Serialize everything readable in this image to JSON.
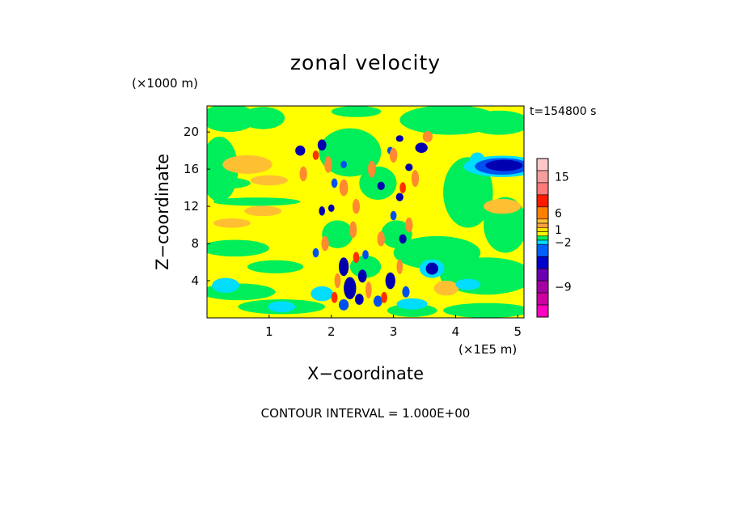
{
  "chart_data": {
    "type": "heatmap",
    "title": "zonal velocity",
    "xlabel": "X−coordinate",
    "ylabel": "Z−coordinate",
    "x_unit": "(×1E5 m)",
    "y_unit": "(×1000 m)",
    "time_label": "t=154800 s",
    "footer": "CONTOUR INTERVAL = 1.000E+00",
    "xlim": [
      0,
      5.1
    ],
    "ylim": [
      0,
      22.8
    ],
    "x_ticks": [
      1,
      2,
      3,
      4,
      5
    ],
    "y_ticks": [
      4,
      8,
      12,
      16,
      20
    ],
    "grid": false,
    "colorbar": {
      "position": "right",
      "tick_labels": [
        {
          "label": "15",
          "value": 15
        },
        {
          "label": "6",
          "value": 6
        },
        {
          "label": "1",
          "value": 1
        },
        {
          "label": "−2",
          "value": -2
        },
        {
          "label": "−9",
          "value": -9
        }
      ],
      "levels": [
        {
          "value": 18,
          "color": "#ffc8c8"
        },
        {
          "value": 15,
          "color": "#f59e9e"
        },
        {
          "value": 12,
          "color": "#ff7a7a"
        },
        {
          "value": 9,
          "color": "#ff1a00"
        },
        {
          "value": 6,
          "color": "#ff7f00"
        },
        {
          "value": 3,
          "color": "#ffbf33"
        },
        {
          "value": 2,
          "color": "#ffa040"
        },
        {
          "value": 1,
          "color": "#ffe000"
        },
        {
          "value": 0,
          "color": "#ffff00"
        },
        {
          "value": -1,
          "color": "#00ee5a"
        },
        {
          "value": -2,
          "color": "#00ddff"
        },
        {
          "value": -3,
          "color": "#0060ff"
        },
        {
          "value": -5,
          "color": "#0000cc"
        },
        {
          "value": -7,
          "color": "#6a00b0"
        },
        {
          "value": -9,
          "color": "#a400a4"
        },
        {
          "value": -11,
          "color": "#cc00a0"
        },
        {
          "value": -13,
          "color": "#ff00c0"
        }
      ]
    },
    "palette": {
      "yellow": "#ffff00",
      "green": "#00ee5a",
      "cyan": "#00ddff",
      "blue": "#0050f0",
      "navy": "#0000b0",
      "orange": "#ffbf33",
      "dark_orange": "#ff8a30",
      "red": "#ff3000"
    },
    "blobs": [
      {
        "x": 0.35,
        "y": 21.5,
        "rx": 0.45,
        "ry": 1.5,
        "v": "green"
      },
      {
        "x": 0.9,
        "y": 21.5,
        "rx": 0.35,
        "ry": 1.2,
        "v": "green"
      },
      {
        "x": 2.4,
        "y": 22.2,
        "rx": 0.4,
        "ry": 0.6,
        "v": "green"
      },
      {
        "x": 3.9,
        "y": 21.3,
        "rx": 0.8,
        "ry": 1.6,
        "v": "green"
      },
      {
        "x": 4.7,
        "y": 21.0,
        "rx": 0.5,
        "ry": 1.3,
        "v": "green"
      },
      {
        "x": 0.2,
        "y": 16.0,
        "rx": 0.3,
        "ry": 3.5,
        "v": "green"
      },
      {
        "x": 0.8,
        "y": 12.5,
        "rx": 0.7,
        "ry": 0.45,
        "v": "green"
      },
      {
        "x": 0.3,
        "y": 14.5,
        "rx": 0.4,
        "ry": 0.6,
        "v": "green"
      },
      {
        "x": 4.2,
        "y": 13.5,
        "rx": 0.4,
        "ry": 3.8,
        "v": "green"
      },
      {
        "x": 4.8,
        "y": 10.0,
        "rx": 0.35,
        "ry": 3.0,
        "v": "green"
      },
      {
        "x": 0.45,
        "y": 7.5,
        "rx": 0.55,
        "ry": 0.9,
        "v": "green"
      },
      {
        "x": 1.1,
        "y": 5.5,
        "rx": 0.45,
        "ry": 0.7,
        "v": "green"
      },
      {
        "x": 0.5,
        "y": 2.8,
        "rx": 0.6,
        "ry": 0.9,
        "v": "green"
      },
      {
        "x": 1.2,
        "y": 1.2,
        "rx": 0.7,
        "ry": 0.8,
        "v": "green"
      },
      {
        "x": 3.7,
        "y": 7.0,
        "rx": 0.7,
        "ry": 1.8,
        "v": "green"
      },
      {
        "x": 4.5,
        "y": 4.5,
        "rx": 0.75,
        "ry": 2.0,
        "v": "green"
      },
      {
        "x": 4.5,
        "y": 0.8,
        "rx": 0.7,
        "ry": 0.8,
        "v": "green"
      },
      {
        "x": 3.3,
        "y": 0.8,
        "rx": 0.4,
        "ry": 0.7,
        "v": "green"
      },
      {
        "x": 0.65,
        "y": 16.5,
        "rx": 0.4,
        "ry": 1.0,
        "v": "orange"
      },
      {
        "x": 1.0,
        "y": 14.8,
        "rx": 0.3,
        "ry": 0.55,
        "v": "orange"
      },
      {
        "x": 0.9,
        "y": 11.5,
        "rx": 0.3,
        "ry": 0.55,
        "v": "orange"
      },
      {
        "x": 0.4,
        "y": 10.2,
        "rx": 0.3,
        "ry": 0.5,
        "v": "orange"
      },
      {
        "x": 4.75,
        "y": 12.0,
        "rx": 0.3,
        "ry": 0.8,
        "v": "orange"
      },
      {
        "x": 3.85,
        "y": 3.2,
        "rx": 0.2,
        "ry": 0.8,
        "v": "orange"
      },
      {
        "x": 2.3,
        "y": 17.8,
        "rx": 0.5,
        "ry": 2.6,
        "v": "green"
      },
      {
        "x": 2.75,
        "y": 14.5,
        "rx": 0.3,
        "ry": 1.8,
        "v": "green"
      },
      {
        "x": 2.1,
        "y": 9.0,
        "rx": 0.25,
        "ry": 1.5,
        "v": "green"
      },
      {
        "x": 3.05,
        "y": 9.0,
        "rx": 0.25,
        "ry": 1.5,
        "v": "green"
      },
      {
        "x": 2.55,
        "y": 5.5,
        "rx": 0.25,
        "ry": 1.2,
        "v": "green"
      },
      {
        "x": 0.3,
        "y": 3.5,
        "rx": 0.22,
        "ry": 0.8,
        "v": "cyan"
      },
      {
        "x": 1.2,
        "y": 1.2,
        "rx": 0.22,
        "ry": 0.6,
        "v": "cyan"
      },
      {
        "x": 1.85,
        "y": 2.6,
        "rx": 0.18,
        "ry": 0.8,
        "v": "cyan"
      },
      {
        "x": 3.3,
        "y": 1.5,
        "rx": 0.25,
        "ry": 0.6,
        "v": "cyan"
      },
      {
        "x": 4.2,
        "y": 3.6,
        "rx": 0.2,
        "ry": 0.6,
        "v": "cyan"
      },
      {
        "x": 3.62,
        "y": 5.3,
        "rx": 0.2,
        "ry": 1.0,
        "v": "cyan"
      },
      {
        "x": 4.35,
        "y": 17.0,
        "rx": 0.12,
        "ry": 0.8,
        "v": "cyan"
      },
      {
        "x": 4.75,
        "y": 16.3,
        "rx": 0.62,
        "ry": 1.15,
        "v": "cyan"
      },
      {
        "x": 4.75,
        "y": 16.3,
        "rx": 0.44,
        "ry": 0.9,
        "v": "blue"
      },
      {
        "x": 4.78,
        "y": 16.4,
        "rx": 0.3,
        "ry": 0.6,
        "v": "navy"
      },
      {
        "x": 3.62,
        "y": 5.3,
        "rx": 0.1,
        "ry": 0.65,
        "v": "navy"
      },
      {
        "x": 1.5,
        "y": 18.0,
        "rx": 0.08,
        "ry": 0.55,
        "v": "navy"
      },
      {
        "x": 1.85,
        "y": 18.6,
        "rx": 0.07,
        "ry": 0.6,
        "v": "navy"
      },
      {
        "x": 3.1,
        "y": 19.3,
        "rx": 0.06,
        "ry": 0.35,
        "v": "navy"
      },
      {
        "x": 3.45,
        "y": 18.3,
        "rx": 0.1,
        "ry": 0.55,
        "v": "navy"
      },
      {
        "x": 3.25,
        "y": 16.2,
        "rx": 0.06,
        "ry": 0.4,
        "v": "navy"
      },
      {
        "x": 2.8,
        "y": 14.2,
        "rx": 0.06,
        "ry": 0.45,
        "v": "navy"
      },
      {
        "x": 3.1,
        "y": 13.0,
        "rx": 0.06,
        "ry": 0.45,
        "v": "navy"
      },
      {
        "x": 1.85,
        "y": 11.5,
        "rx": 0.05,
        "ry": 0.5,
        "v": "navy"
      },
      {
        "x": 2.0,
        "y": 11.8,
        "rx": 0.05,
        "ry": 0.4,
        "v": "navy"
      },
      {
        "x": 3.15,
        "y": 8.5,
        "rx": 0.06,
        "ry": 0.5,
        "v": "navy"
      },
      {
        "x": 2.2,
        "y": 5.5,
        "rx": 0.08,
        "ry": 1.0,
        "v": "navy"
      },
      {
        "x": 2.3,
        "y": 3.2,
        "rx": 0.1,
        "ry": 1.2,
        "v": "navy"
      },
      {
        "x": 2.5,
        "y": 4.5,
        "rx": 0.07,
        "ry": 0.7,
        "v": "navy"
      },
      {
        "x": 2.95,
        "y": 4.0,
        "rx": 0.08,
        "ry": 0.9,
        "v": "navy"
      },
      {
        "x": 2.45,
        "y": 2.0,
        "rx": 0.07,
        "ry": 0.6,
        "v": "navy"
      },
      {
        "x": 2.2,
        "y": 1.4,
        "rx": 0.08,
        "ry": 0.6,
        "v": "blue"
      },
      {
        "x": 2.75,
        "y": 1.8,
        "rx": 0.07,
        "ry": 0.6,
        "v": "blue"
      },
      {
        "x": 3.2,
        "y": 2.8,
        "rx": 0.06,
        "ry": 0.6,
        "v": "blue"
      },
      {
        "x": 2.55,
        "y": 6.8,
        "rx": 0.05,
        "ry": 0.5,
        "v": "blue"
      },
      {
        "x": 1.75,
        "y": 7.0,
        "rx": 0.05,
        "ry": 0.5,
        "v": "blue"
      },
      {
        "x": 3.0,
        "y": 11.0,
        "rx": 0.05,
        "ry": 0.5,
        "v": "blue"
      },
      {
        "x": 2.05,
        "y": 14.5,
        "rx": 0.05,
        "ry": 0.5,
        "v": "blue"
      },
      {
        "x": 2.95,
        "y": 18.0,
        "rx": 0.05,
        "ry": 0.4,
        "v": "blue"
      },
      {
        "x": 2.2,
        "y": 16.5,
        "rx": 0.05,
        "ry": 0.4,
        "v": "blue"
      },
      {
        "x": 1.55,
        "y": 15.5,
        "rx": 0.06,
        "ry": 0.8,
        "v": "dark_orange"
      },
      {
        "x": 1.95,
        "y": 16.5,
        "rx": 0.06,
        "ry": 0.9,
        "v": "dark_orange"
      },
      {
        "x": 2.2,
        "y": 14.0,
        "rx": 0.07,
        "ry": 0.9,
        "v": "dark_orange"
      },
      {
        "x": 2.4,
        "y": 12.0,
        "rx": 0.06,
        "ry": 0.8,
        "v": "dark_orange"
      },
      {
        "x": 2.65,
        "y": 16.0,
        "rx": 0.06,
        "ry": 0.9,
        "v": "dark_orange"
      },
      {
        "x": 3.0,
        "y": 17.5,
        "rx": 0.06,
        "ry": 0.8,
        "v": "dark_orange"
      },
      {
        "x": 3.35,
        "y": 15.0,
        "rx": 0.06,
        "ry": 0.9,
        "v": "dark_orange"
      },
      {
        "x": 3.55,
        "y": 19.5,
        "rx": 0.08,
        "ry": 0.6,
        "v": "dark_orange"
      },
      {
        "x": 1.9,
        "y": 8.0,
        "rx": 0.06,
        "ry": 0.8,
        "v": "dark_orange"
      },
      {
        "x": 2.35,
        "y": 9.5,
        "rx": 0.06,
        "ry": 0.9,
        "v": "dark_orange"
      },
      {
        "x": 2.8,
        "y": 8.5,
        "rx": 0.06,
        "ry": 0.8,
        "v": "dark_orange"
      },
      {
        "x": 3.25,
        "y": 10.0,
        "rx": 0.06,
        "ry": 0.8,
        "v": "dark_orange"
      },
      {
        "x": 2.1,
        "y": 4.0,
        "rx": 0.05,
        "ry": 0.8,
        "v": "dark_orange"
      },
      {
        "x": 2.6,
        "y": 3.0,
        "rx": 0.05,
        "ry": 0.9,
        "v": "dark_orange"
      },
      {
        "x": 3.1,
        "y": 5.5,
        "rx": 0.05,
        "ry": 0.8,
        "v": "dark_orange"
      },
      {
        "x": 2.4,
        "y": 6.5,
        "rx": 0.05,
        "ry": 0.6,
        "v": "red"
      },
      {
        "x": 2.85,
        "y": 2.2,
        "rx": 0.05,
        "ry": 0.6,
        "v": "red"
      },
      {
        "x": 2.05,
        "y": 2.2,
        "rx": 0.05,
        "ry": 0.6,
        "v": "red"
      },
      {
        "x": 3.15,
        "y": 14.0,
        "rx": 0.05,
        "ry": 0.6,
        "v": "red"
      },
      {
        "x": 1.75,
        "y": 17.5,
        "rx": 0.05,
        "ry": 0.5,
        "v": "red"
      }
    ]
  }
}
